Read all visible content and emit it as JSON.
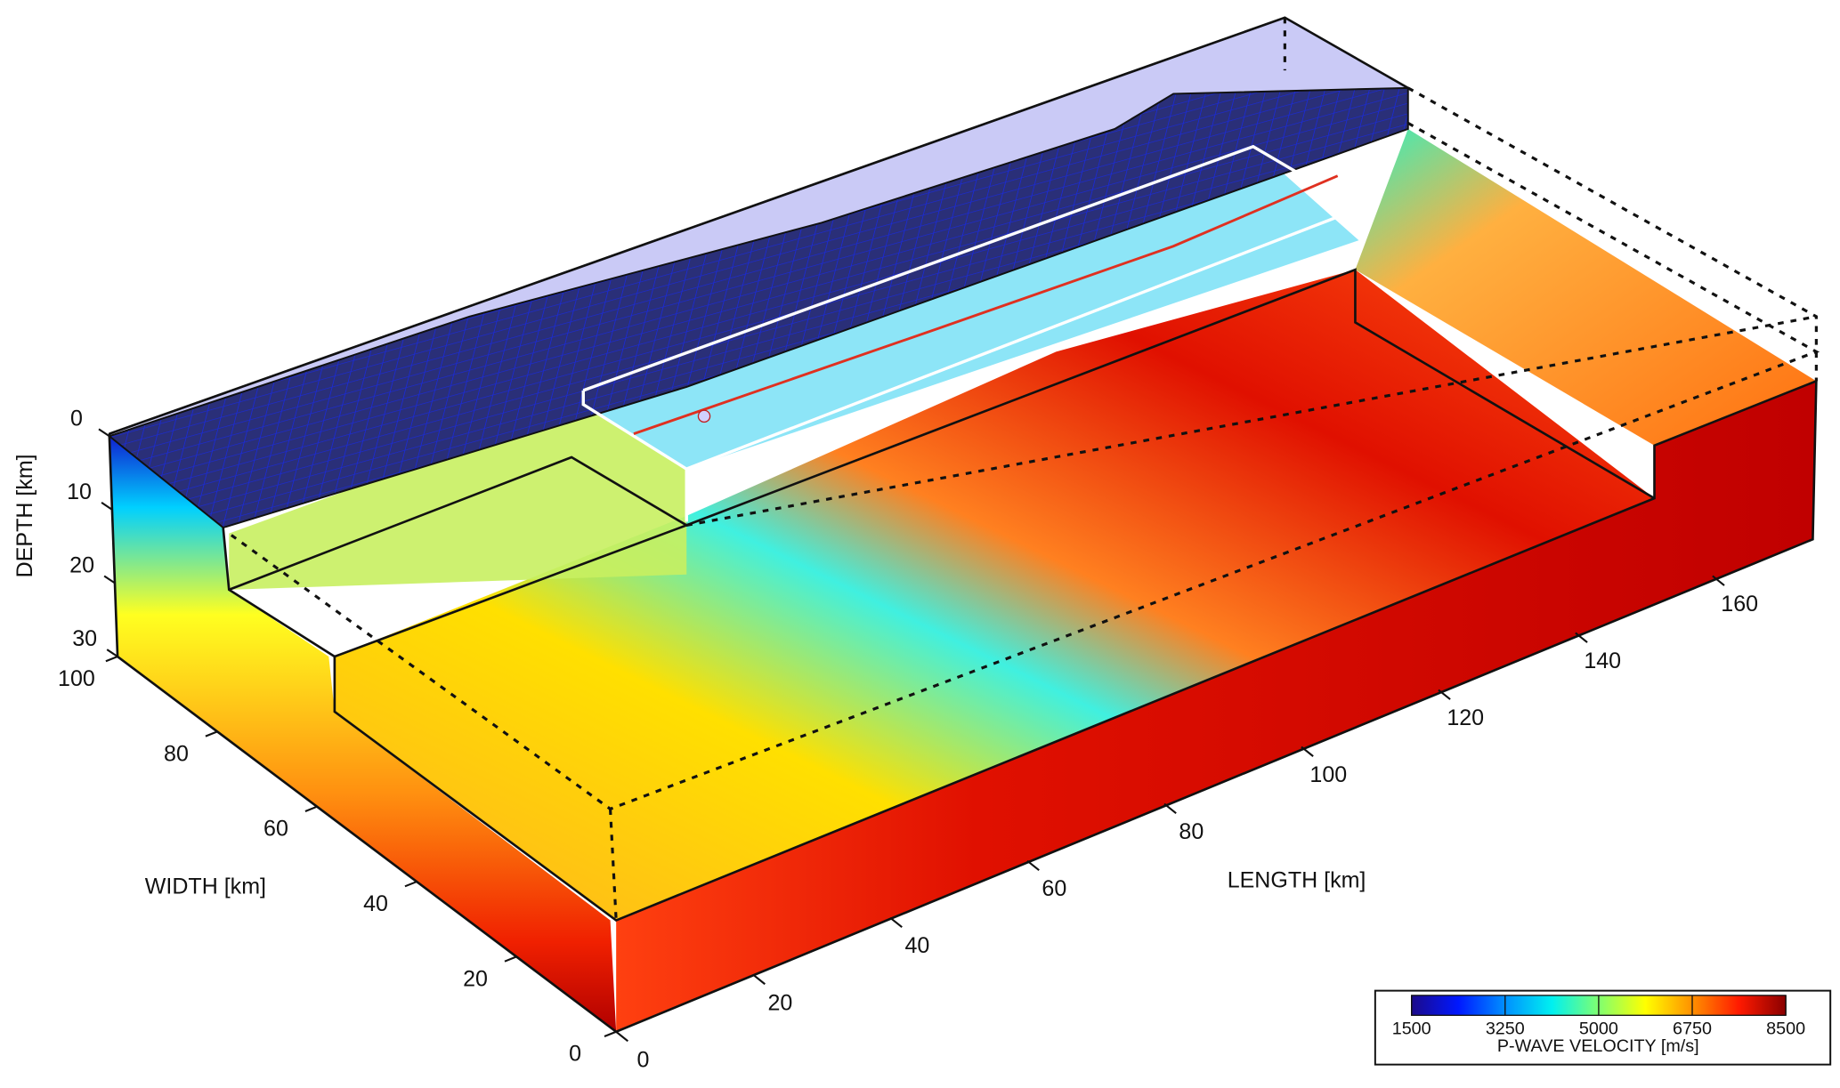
{
  "chart_data": {
    "type": "volume",
    "x_label": "LENGTH [km]",
    "y_label": "WIDTH [km]",
    "z_label": "DEPTH [km]",
    "xlim": [
      0,
      170
    ],
    "xticks": [
      0,
      20,
      40,
      60,
      80,
      100,
      120,
      140,
      160
    ],
    "ylim": [
      0,
      100
    ],
    "yticks": [
      0,
      20,
      40,
      60,
      80,
      100
    ],
    "zlim": [
      0,
      30
    ],
    "zticks": [
      0,
      10,
      20,
      30
    ],
    "colorbar": {
      "label": "P-WAVE VELOCITY [m/s]",
      "clim": [
        1500,
        8500
      ],
      "ticks": [
        1500,
        3250,
        5000,
        6750,
        8500
      ],
      "colormap": [
        "#1c0a8a",
        "#0018ff",
        "#0090ff",
        "#00f0f0",
        "#80ff70",
        "#ffff00",
        "#ff9000",
        "#ff1a00",
        "#8a0000"
      ]
    }
  }
}
